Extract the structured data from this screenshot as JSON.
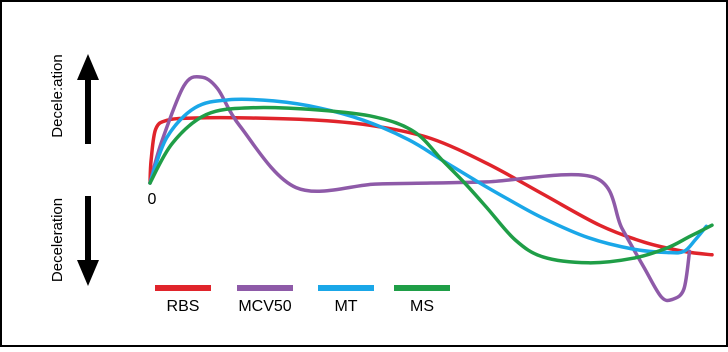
{
  "chart_data": {
    "type": "line",
    "title": "",
    "xlabel": "",
    "ylabel": "",
    "grid": false,
    "legend": "bottom-left",
    "axis_labels": {
      "upper": "Decele:ation",
      "lower": "Deceleration"
    },
    "origin_label": "0",
    "xlim": [
      0,
      1
    ],
    "ylim": [
      -1,
      1
    ],
    "series": [
      {
        "name": "RBS",
        "color": "#e0242b",
        "points": [
          [
            0,
            0
          ],
          [
            0.002,
            0.2
          ],
          [
            0.01,
            0.47
          ],
          [
            0.03,
            0.55
          ],
          [
            0.08,
            0.57
          ],
          [
            0.18,
            0.57
          ],
          [
            0.3,
            0.55
          ],
          [
            0.4,
            0.5
          ],
          [
            0.5,
            0.39
          ],
          [
            0.6,
            0.17
          ],
          [
            0.7,
            -0.1
          ],
          [
            0.8,
            -0.37
          ],
          [
            0.88,
            -0.52
          ],
          [
            0.95,
            -0.6
          ],
          [
            1,
            -0.63
          ]
        ]
      },
      {
        "name": "MCV50",
        "color": "#8e5aa8",
        "points": [
          [
            0,
            0
          ],
          [
            0.02,
            0.35
          ],
          [
            0.06,
            0.85
          ],
          [
            0.09,
            0.93
          ],
          [
            0.12,
            0.83
          ],
          [
            0.16,
            0.5
          ],
          [
            0.26,
            -0.04
          ],
          [
            0.4,
            -0.01
          ],
          [
            0.5,
            0
          ],
          [
            0.6,
            0.01
          ],
          [
            0.79,
            0.05
          ],
          [
            0.84,
            -0.4
          ],
          [
            0.88,
            -0.75
          ],
          [
            0.91,
            -1
          ],
          [
            0.93,
            -1.02
          ],
          [
            0.95,
            -0.93
          ],
          [
            0.96,
            -0.6
          ]
        ]
      },
      {
        "name": "MT",
        "color": "#1aa7e8",
        "points": [
          [
            0,
            0
          ],
          [
            0.03,
            0.4
          ],
          [
            0.08,
            0.66
          ],
          [
            0.14,
            0.73
          ],
          [
            0.22,
            0.72
          ],
          [
            0.3,
            0.66
          ],
          [
            0.38,
            0.55
          ],
          [
            0.46,
            0.38
          ],
          [
            0.52,
            0.2
          ],
          [
            0.58,
            0.02
          ],
          [
            0.64,
            -0.15
          ],
          [
            0.7,
            -0.31
          ],
          [
            0.78,
            -0.48
          ],
          [
            0.86,
            -0.58
          ],
          [
            0.92,
            -0.61
          ],
          [
            0.95,
            -0.6
          ],
          [
            0.97,
            -0.5
          ],
          [
            0.99,
            -0.38
          ]
        ]
      },
      {
        "name": "MS",
        "color": "#1f9e47",
        "points": [
          [
            0,
            0
          ],
          [
            0.04,
            0.35
          ],
          [
            0.1,
            0.6
          ],
          [
            0.18,
            0.66
          ],
          [
            0.3,
            0.64
          ],
          [
            0.4,
            0.58
          ],
          [
            0.47,
            0.45
          ],
          [
            0.52,
            0.2
          ],
          [
            0.56,
            0
          ],
          [
            0.6,
            -0.22
          ],
          [
            0.65,
            -0.5
          ],
          [
            0.7,
            -0.65
          ],
          [
            0.78,
            -0.7
          ],
          [
            0.86,
            -0.66
          ],
          [
            0.92,
            -0.57
          ],
          [
            0.96,
            -0.47
          ],
          [
            1,
            -0.37
          ]
        ]
      }
    ]
  }
}
